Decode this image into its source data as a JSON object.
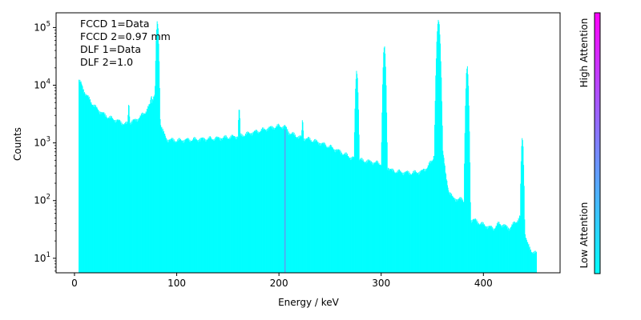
{
  "chart_data": {
    "type": "bar",
    "title": "",
    "xlabel": "Energy / keV",
    "ylabel": "Counts",
    "xlim": [
      -18,
      475
    ],
    "ylim": [
      5.6,
      180000
    ],
    "yscale": "log",
    "x_ticks": [
      {
        "value": 0,
        "label": "0"
      },
      {
        "value": 100,
        "label": "100"
      },
      {
        "value": 200,
        "label": "200"
      },
      {
        "value": 300,
        "label": "300"
      },
      {
        "value": 400,
        "label": "400"
      }
    ],
    "y_ticks": [
      {
        "value": 10,
        "base": "10",
        "exp": "1"
      },
      {
        "value": 100,
        "base": "10",
        "exp": "2"
      },
      {
        "value": 1000,
        "base": "10",
        "exp": "3"
      },
      {
        "value": 10000,
        "base": "10",
        "exp": "4"
      },
      {
        "value": 100000,
        "base": "10",
        "exp": "5"
      }
    ],
    "bar_color": "#00ffff",
    "annotations": [
      "FCCD 1=Data",
      "FCCD 2=0.97 mm",
      "DLF 1=Data",
      "DLF 2=1.0"
    ],
    "highlight": {
      "x": 206,
      "value": 1700,
      "color": "#8e6fe8"
    },
    "colorbar": {
      "label_low": "Low Attention",
      "label_high": "High Attention",
      "color_low": "#00ffff",
      "color_high": "#ff00ff"
    },
    "spectrum": {
      "x_start": 4,
      "x_end": 452,
      "continuum": [
        [
          4,
          12000
        ],
        [
          6,
          11000
        ],
        [
          10,
          7500
        ],
        [
          15,
          5500
        ],
        [
          20,
          4200
        ],
        [
          25,
          3500
        ],
        [
          30,
          3000
        ],
        [
          35,
          2700
        ],
        [
          40,
          2500
        ],
        [
          45,
          2300
        ],
        [
          50,
          2100
        ],
        [
          55,
          2300
        ],
        [
          60,
          2500
        ],
        [
          65,
          2900
        ],
        [
          70,
          3600
        ],
        [
          75,
          5000
        ],
        [
          78,
          7000
        ],
        [
          82,
          4500
        ],
        [
          84,
          2200
        ],
        [
          87,
          1500
        ],
        [
          90,
          1150
        ],
        [
          100,
          1100
        ],
        [
          120,
          1150
        ],
        [
          140,
          1200
        ],
        [
          160,
          1300
        ],
        [
          170,
          1450
        ],
        [
          180,
          1600
        ],
        [
          190,
          1800
        ],
        [
          200,
          1950
        ],
        [
          206,
          1900
        ],
        [
          210,
          1500
        ],
        [
          220,
          1250
        ],
        [
          230,
          1150
        ],
        [
          240,
          1000
        ],
        [
          250,
          850
        ],
        [
          260,
          700
        ],
        [
          270,
          560
        ],
        [
          280,
          500
        ],
        [
          290,
          470
        ],
        [
          295,
          450
        ],
        [
          300,
          440
        ],
        [
          305,
          400
        ],
        [
          310,
          330
        ],
        [
          320,
          310
        ],
        [
          330,
          300
        ],
        [
          340,
          320
        ],
        [
          345,
          380
        ],
        [
          350,
          500
        ],
        [
          353,
          800
        ],
        [
          360,
          800
        ],
        [
          363,
          280
        ],
        [
          366,
          150
        ],
        [
          370,
          110
        ],
        [
          375,
          105
        ],
        [
          380,
          105
        ],
        [
          385,
          45
        ],
        [
          390,
          47
        ],
        [
          395,
          42
        ],
        [
          400,
          38
        ],
        [
          405,
          35
        ],
        [
          410,
          33
        ],
        [
          415,
          40
        ],
        [
          420,
          37
        ],
        [
          425,
          33
        ],
        [
          430,
          40
        ],
        [
          435,
          50
        ],
        [
          438,
          65
        ],
        [
          440,
          30
        ],
        [
          443,
          18
        ],
        [
          445,
          15
        ],
        [
          448,
          13
        ],
        [
          452,
          12
        ]
      ],
      "peaks": [
        {
          "x": 53,
          "value": 4800,
          "width": 0.8
        },
        {
          "x": 75,
          "value": 6500,
          "width": 1.2
        },
        {
          "x": 81,
          "value": 120000,
          "width": 1.0
        },
        {
          "x": 161,
          "value": 3800,
          "width": 0.8
        },
        {
          "x": 223,
          "value": 2500,
          "width": 0.8
        },
        {
          "x": 276,
          "value": 18000,
          "width": 1.0
        },
        {
          "x": 303,
          "value": 45000,
          "width": 1.0
        },
        {
          "x": 356,
          "value": 130000,
          "width": 1.3
        },
        {
          "x": 384,
          "value": 20000,
          "width": 1.0
        },
        {
          "x": 438,
          "value": 1200,
          "width": 0.9
        }
      ]
    }
  }
}
